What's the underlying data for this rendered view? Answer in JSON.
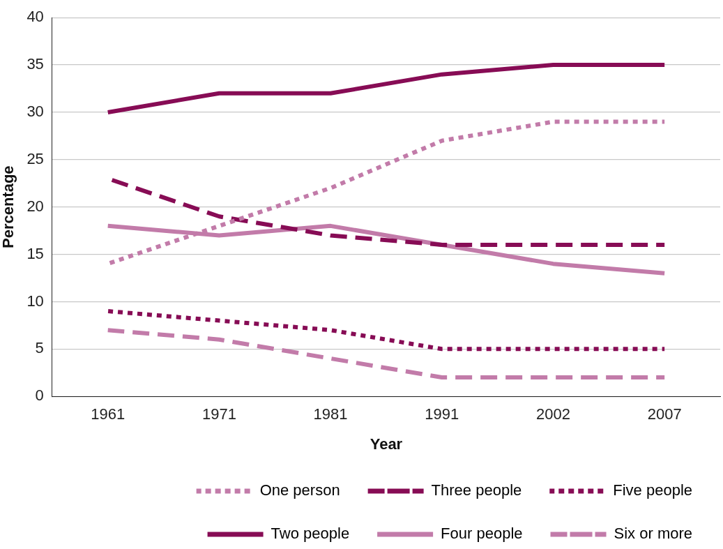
{
  "chart_data": {
    "type": "line",
    "xlabel": "Year",
    "ylabel": "Percentage",
    "categories": [
      "1961",
      "1971",
      "1981",
      "1991",
      "2002",
      "2007"
    ],
    "series": [
      {
        "name": "One person",
        "color": "#c27ba9",
        "line_style": "dotted",
        "values": [
          14,
          18,
          22,
          27,
          29,
          29
        ]
      },
      {
        "name": "Three people",
        "color": "#870c55",
        "line_style": "dashed",
        "values": [
          23,
          19,
          17,
          16,
          16,
          16
        ]
      },
      {
        "name": "Five people",
        "color": "#870c55",
        "line_style": "dotted",
        "values": [
          9,
          8,
          7,
          5,
          5,
          5
        ]
      },
      {
        "name": "Two people",
        "color": "#870c55",
        "line_style": "solid",
        "values": [
          30,
          32,
          32,
          34,
          35,
          35
        ]
      },
      {
        "name": "Four people",
        "color": "#c27ba9",
        "line_style": "solid",
        "values": [
          18,
          17,
          18,
          16,
          14,
          13
        ]
      },
      {
        "name": "Six or more",
        "color": "#c27ba9",
        "line_style": "dashed",
        "values": [
          7,
          6,
          4,
          2,
          2,
          2
        ]
      }
    ],
    "ylim": [
      0,
      40
    ],
    "yticks": [
      0,
      5,
      10,
      15,
      20,
      25,
      30,
      35,
      40
    ],
    "grid": "y",
    "legend": "bottom",
    "marker": "none"
  }
}
